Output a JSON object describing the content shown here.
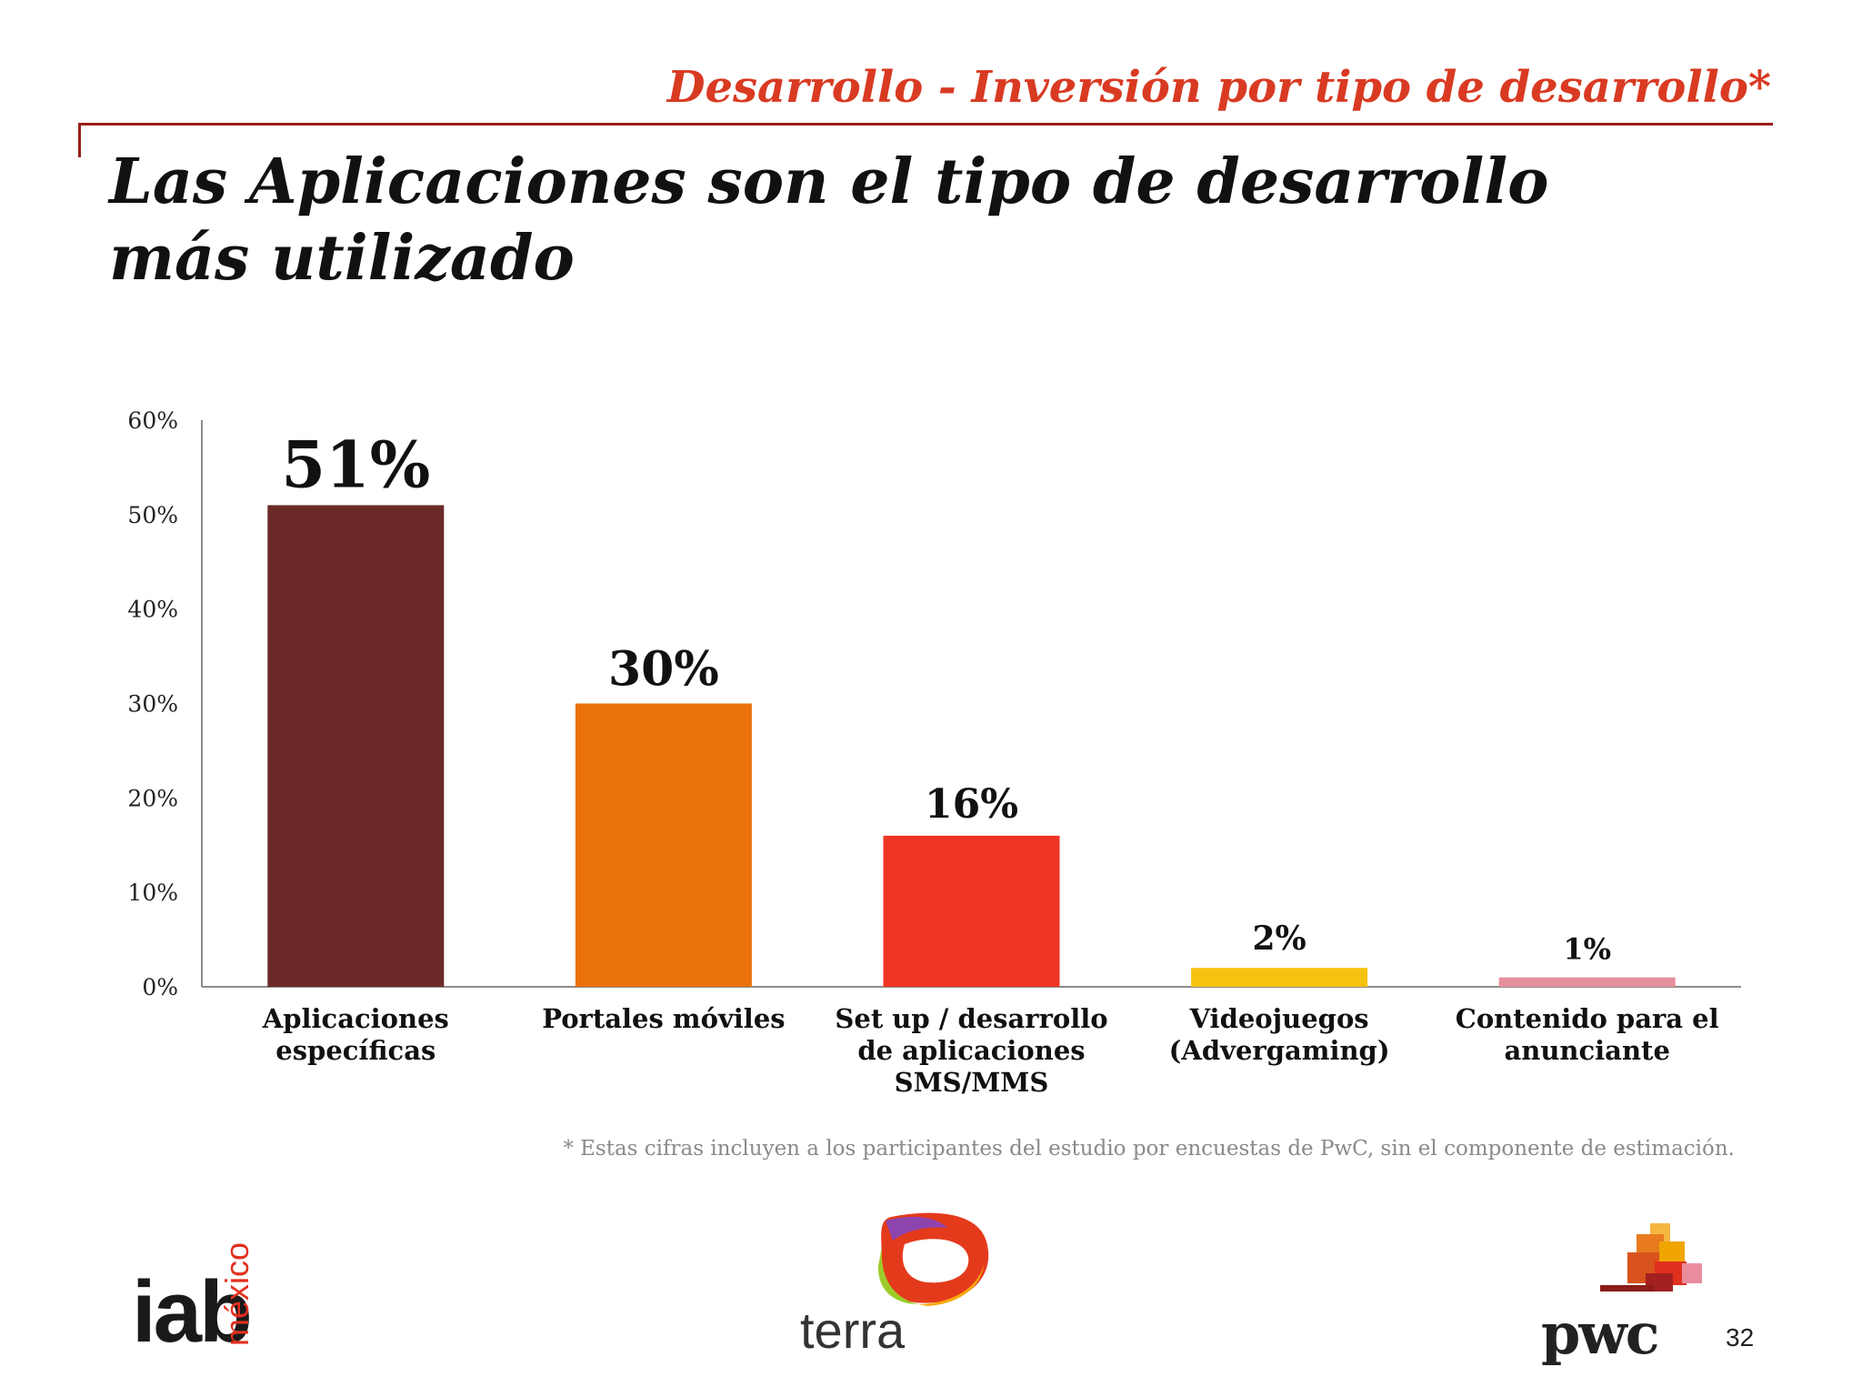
{
  "header": {
    "section_title": "Desarrollo - Inversión por tipo de desarrollo*",
    "headline": "Las Aplicaciones son el tipo de desarrollo más utilizado"
  },
  "chart_data": {
    "type": "bar",
    "categories": [
      [
        "Aplicaciones",
        "específicas"
      ],
      [
        "Portales móviles"
      ],
      [
        "Set up / desarrollo",
        "de aplicaciones",
        "SMS/MMS"
      ],
      [
        "Videojuegos",
        "(Advergaming)"
      ],
      [
        "Contenido para el",
        "anunciante"
      ]
    ],
    "values": [
      51,
      30,
      16,
      2,
      1
    ],
    "data_labels": [
      "51%",
      "30%",
      "16%",
      "2%",
      "1%"
    ],
    "colors": [
      "#6b2a28",
      "#e9720d",
      "#ef3524",
      "#f7c20f",
      "#e58f9c"
    ],
    "ylim": [
      0,
      60
    ],
    "yticks": [
      0,
      10,
      20,
      30,
      40,
      50,
      60
    ],
    "ytick_labels": [
      "0%",
      "10%",
      "20%",
      "30%",
      "40%",
      "50%",
      "60%"
    ],
    "grid": false,
    "legend": "none"
  },
  "footnote": "* Estas cifras incluyen a los participantes del estudio por encuestas de PwC, sin el componente de estimación.",
  "logos": {
    "iab": {
      "text": "iab",
      "sub": "méxico"
    },
    "terra": {
      "text": "terra"
    },
    "pwc": {
      "text": "pwc"
    }
  },
  "page_number": "32",
  "colors": {
    "accent": "#d93a22",
    "rule": "#9a1f1a"
  }
}
